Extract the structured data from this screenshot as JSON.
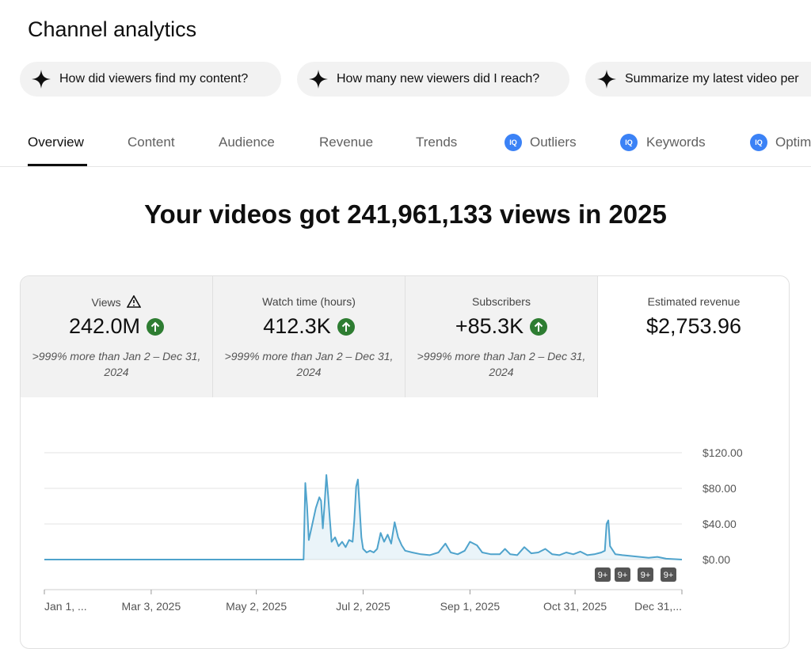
{
  "header": {
    "title": "Channel analytics"
  },
  "suggestions": [
    "How did viewers find my content?",
    "How many new viewers did I reach?",
    "Summarize my latest video per"
  ],
  "tabs": [
    "Overview",
    "Content",
    "Audience",
    "Revenue",
    "Trends",
    "Outliers",
    "Keywords",
    "Optim"
  ],
  "headline": "Your videos got 241,961,133 views in 2025",
  "metrics": [
    {
      "label": "Views",
      "value": "242.0M",
      "comparison": ">999% more than Jan 2 – Dec 31, 2024"
    },
    {
      "label": "Watch time (hours)",
      "value": "412.3K",
      "comparison": ">999% more than Jan 2 – Dec 31, 2024"
    },
    {
      "label": "Subscribers",
      "value": "+85.3K",
      "comparison": ">999% more than Jan 2 – Dec 31, 2024"
    },
    {
      "label": "Estimated revenue",
      "value": "$2,753.96"
    }
  ],
  "chart_data": {
    "type": "line",
    "color": "#4fa3cc",
    "grid": true,
    "x": [
      0,
      148,
      149,
      150,
      151,
      153,
      155,
      157,
      158,
      159,
      160,
      161,
      162,
      163,
      164,
      166,
      168,
      170,
      172,
      174,
      176,
      177,
      178,
      179,
      180,
      181,
      182,
      184,
      186,
      188,
      190,
      192,
      194,
      196,
      198,
      200,
      202,
      204,
      206,
      210,
      215,
      220,
      225,
      229,
      232,
      236,
      240,
      243,
      247,
      250,
      255,
      260,
      263,
      266,
      270,
      274,
      278,
      282,
      286,
      290,
      294,
      298,
      302,
      306,
      310,
      314,
      318,
      320,
      321,
      322,
      323,
      326,
      330,
      335,
      340,
      345,
      350,
      355,
      364
    ],
    "values": [
      0,
      0,
      86,
      60,
      22,
      40,
      58,
      70,
      66,
      35,
      62,
      95,
      72,
      45,
      20,
      25,
      15,
      20,
      14,
      22,
      20,
      45,
      82,
      90,
      58,
      25,
      12,
      8,
      10,
      8,
      12,
      30,
      20,
      28,
      18,
      42,
      25,
      16,
      10,
      8,
      6,
      5,
      8,
      18,
      8,
      6,
      10,
      20,
      16,
      8,
      6,
      6,
      12,
      6,
      5,
      14,
      7,
      8,
      12,
      6,
      5,
      8,
      6,
      9,
      5,
      6,
      8,
      10,
      40,
      44,
      15,
      6,
      5,
      4,
      3,
      2,
      3,
      1,
      0
    ],
    "xlim": [
      0,
      364
    ],
    "xticks": [
      {
        "value": 0,
        "label": "Jan 1, ..."
      },
      {
        "value": 61,
        "label": "Mar 3, 2025"
      },
      {
        "value": 121,
        "label": "May 2, 2025"
      },
      {
        "value": 182,
        "label": "Jul 2, 2025"
      },
      {
        "value": 243,
        "label": "Sep 1, 2025"
      },
      {
        "value": 303,
        "label": "Oct 31, 2025"
      },
      {
        "value": 364,
        "label": "Dec 31,..."
      }
    ],
    "ylim": [
      0,
      120
    ],
    "yticks": [
      {
        "value": 0,
        "label": "$0.00"
      },
      {
        "value": 40,
        "label": "$40.00"
      },
      {
        "value": 80,
        "label": "$80.00"
      },
      {
        "value": 120,
        "label": "$120.00"
      }
    ],
    "annotations": [
      "9+",
      "9+",
      "9+",
      "9+"
    ]
  }
}
